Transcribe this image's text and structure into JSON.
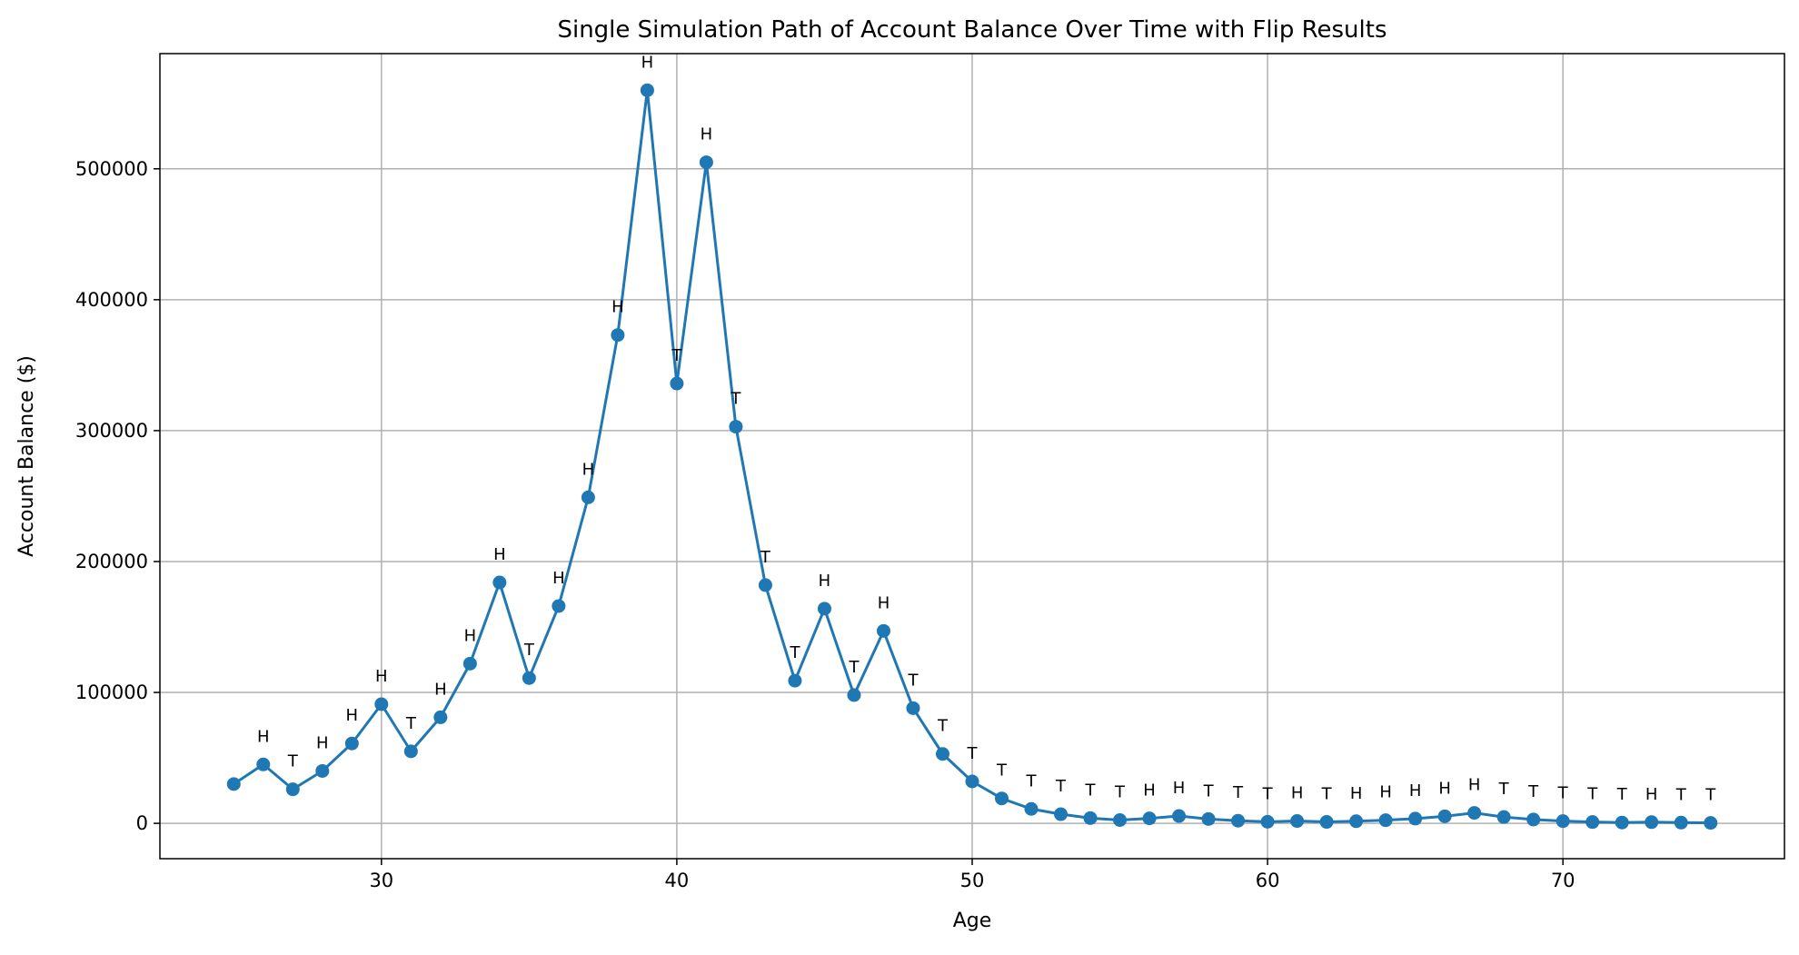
{
  "chart_data": {
    "type": "line",
    "title": "Single Simulation Path of Account Balance Over Time with Flip Results",
    "xlabel": "Age",
    "ylabel": "Account Balance ($)",
    "xlim": [
      22.5,
      77.5
    ],
    "ylim": [
      -27000,
      588000
    ],
    "xticks": [
      30,
      40,
      50,
      60,
      70
    ],
    "yticks": [
      0,
      100000,
      200000,
      300000,
      400000,
      500000
    ],
    "grid": true,
    "line_color": "#1f77b4",
    "marker": "circle",
    "series": [
      {
        "x": [
          25,
          26,
          27,
          28,
          29,
          30,
          31,
          32,
          33,
          34,
          35,
          36,
          37,
          38,
          39,
          40,
          41,
          42,
          43,
          44,
          45,
          46,
          47,
          48,
          49,
          50,
          51,
          52,
          53,
          54,
          55,
          56,
          57,
          58,
          59,
          60,
          61,
          62,
          63,
          64,
          65,
          66,
          67,
          68,
          69,
          70,
          71,
          72,
          73,
          74,
          75
        ],
        "values": [
          30000,
          45000,
          26000,
          40000,
          61000,
          91000,
          55000,
          81000,
          122000,
          184000,
          111000,
          166000,
          249000,
          373000,
          560000,
          336000,
          505000,
          303000,
          182000,
          109000,
          164000,
          98000,
          147000,
          88000,
          53000,
          32000,
          19000,
          11000,
          7000,
          4000,
          2500,
          3800,
          5600,
          3300,
          2000,
          1200,
          1800,
          1100,
          1600,
          2400,
          3600,
          5400,
          8000,
          4800,
          2900,
          1700,
          1000,
          600,
          900,
          550,
          330
        ]
      }
    ],
    "annotations": [
      "",
      "H",
      "T",
      "H",
      "H",
      "H",
      "T",
      "H",
      "H",
      "H",
      "T",
      "H",
      "H",
      "H",
      "H",
      "T",
      "H",
      "T",
      "T",
      "T",
      "H",
      "T",
      "H",
      "T",
      "T",
      "T",
      "T",
      "T",
      "T",
      "T",
      "T",
      "H",
      "H",
      "T",
      "T",
      "T",
      "H",
      "T",
      "H",
      "H",
      "H",
      "H",
      "H",
      "T",
      "T",
      "T",
      "T",
      "T",
      "H",
      "T",
      "T"
    ]
  }
}
